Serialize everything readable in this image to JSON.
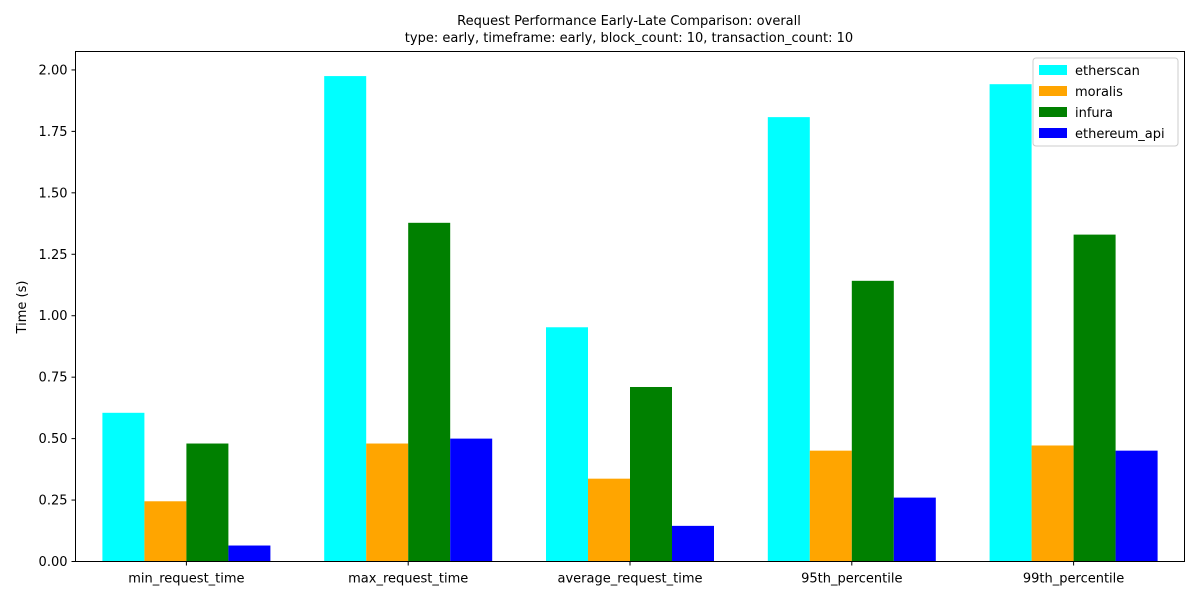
{
  "chart_data": {
    "type": "bar",
    "title": "Request Performance Early-Late Comparison: overall",
    "subtitle": "type: early, timeframe: early, block_count: 10, transaction_count: 10",
    "xlabel": "",
    "ylabel": "Time (s)",
    "ylim": [
      0,
      2.075
    ],
    "yticks": [
      0.0,
      0.25,
      0.5,
      0.75,
      1.0,
      1.25,
      1.5,
      1.75,
      2.0
    ],
    "ytick_labels": [
      "0.00",
      "0.25",
      "0.50",
      "0.75",
      "1.00",
      "1.25",
      "1.50",
      "1.75",
      "2.00"
    ],
    "grid": false,
    "legend_position": "top-right",
    "categories": [
      "min_request_time",
      "max_request_time",
      "average_request_time",
      "95th_percentile",
      "99th_percentile"
    ],
    "series": [
      {
        "name": "etherscan",
        "color": "#00ffff",
        "values": [
          0.605,
          1.975,
          0.953,
          1.808,
          1.942
        ]
      },
      {
        "name": "moralis",
        "color": "#ffa500",
        "values": [
          0.245,
          0.48,
          0.337,
          0.451,
          0.472
        ]
      },
      {
        "name": "infura",
        "color": "#008000",
        "values": [
          0.48,
          1.378,
          0.71,
          1.142,
          1.33
        ]
      },
      {
        "name": "ethereum_api",
        "color": "#0000ff",
        "values": [
          0.065,
          0.5,
          0.145,
          0.26,
          0.451
        ]
      }
    ]
  }
}
